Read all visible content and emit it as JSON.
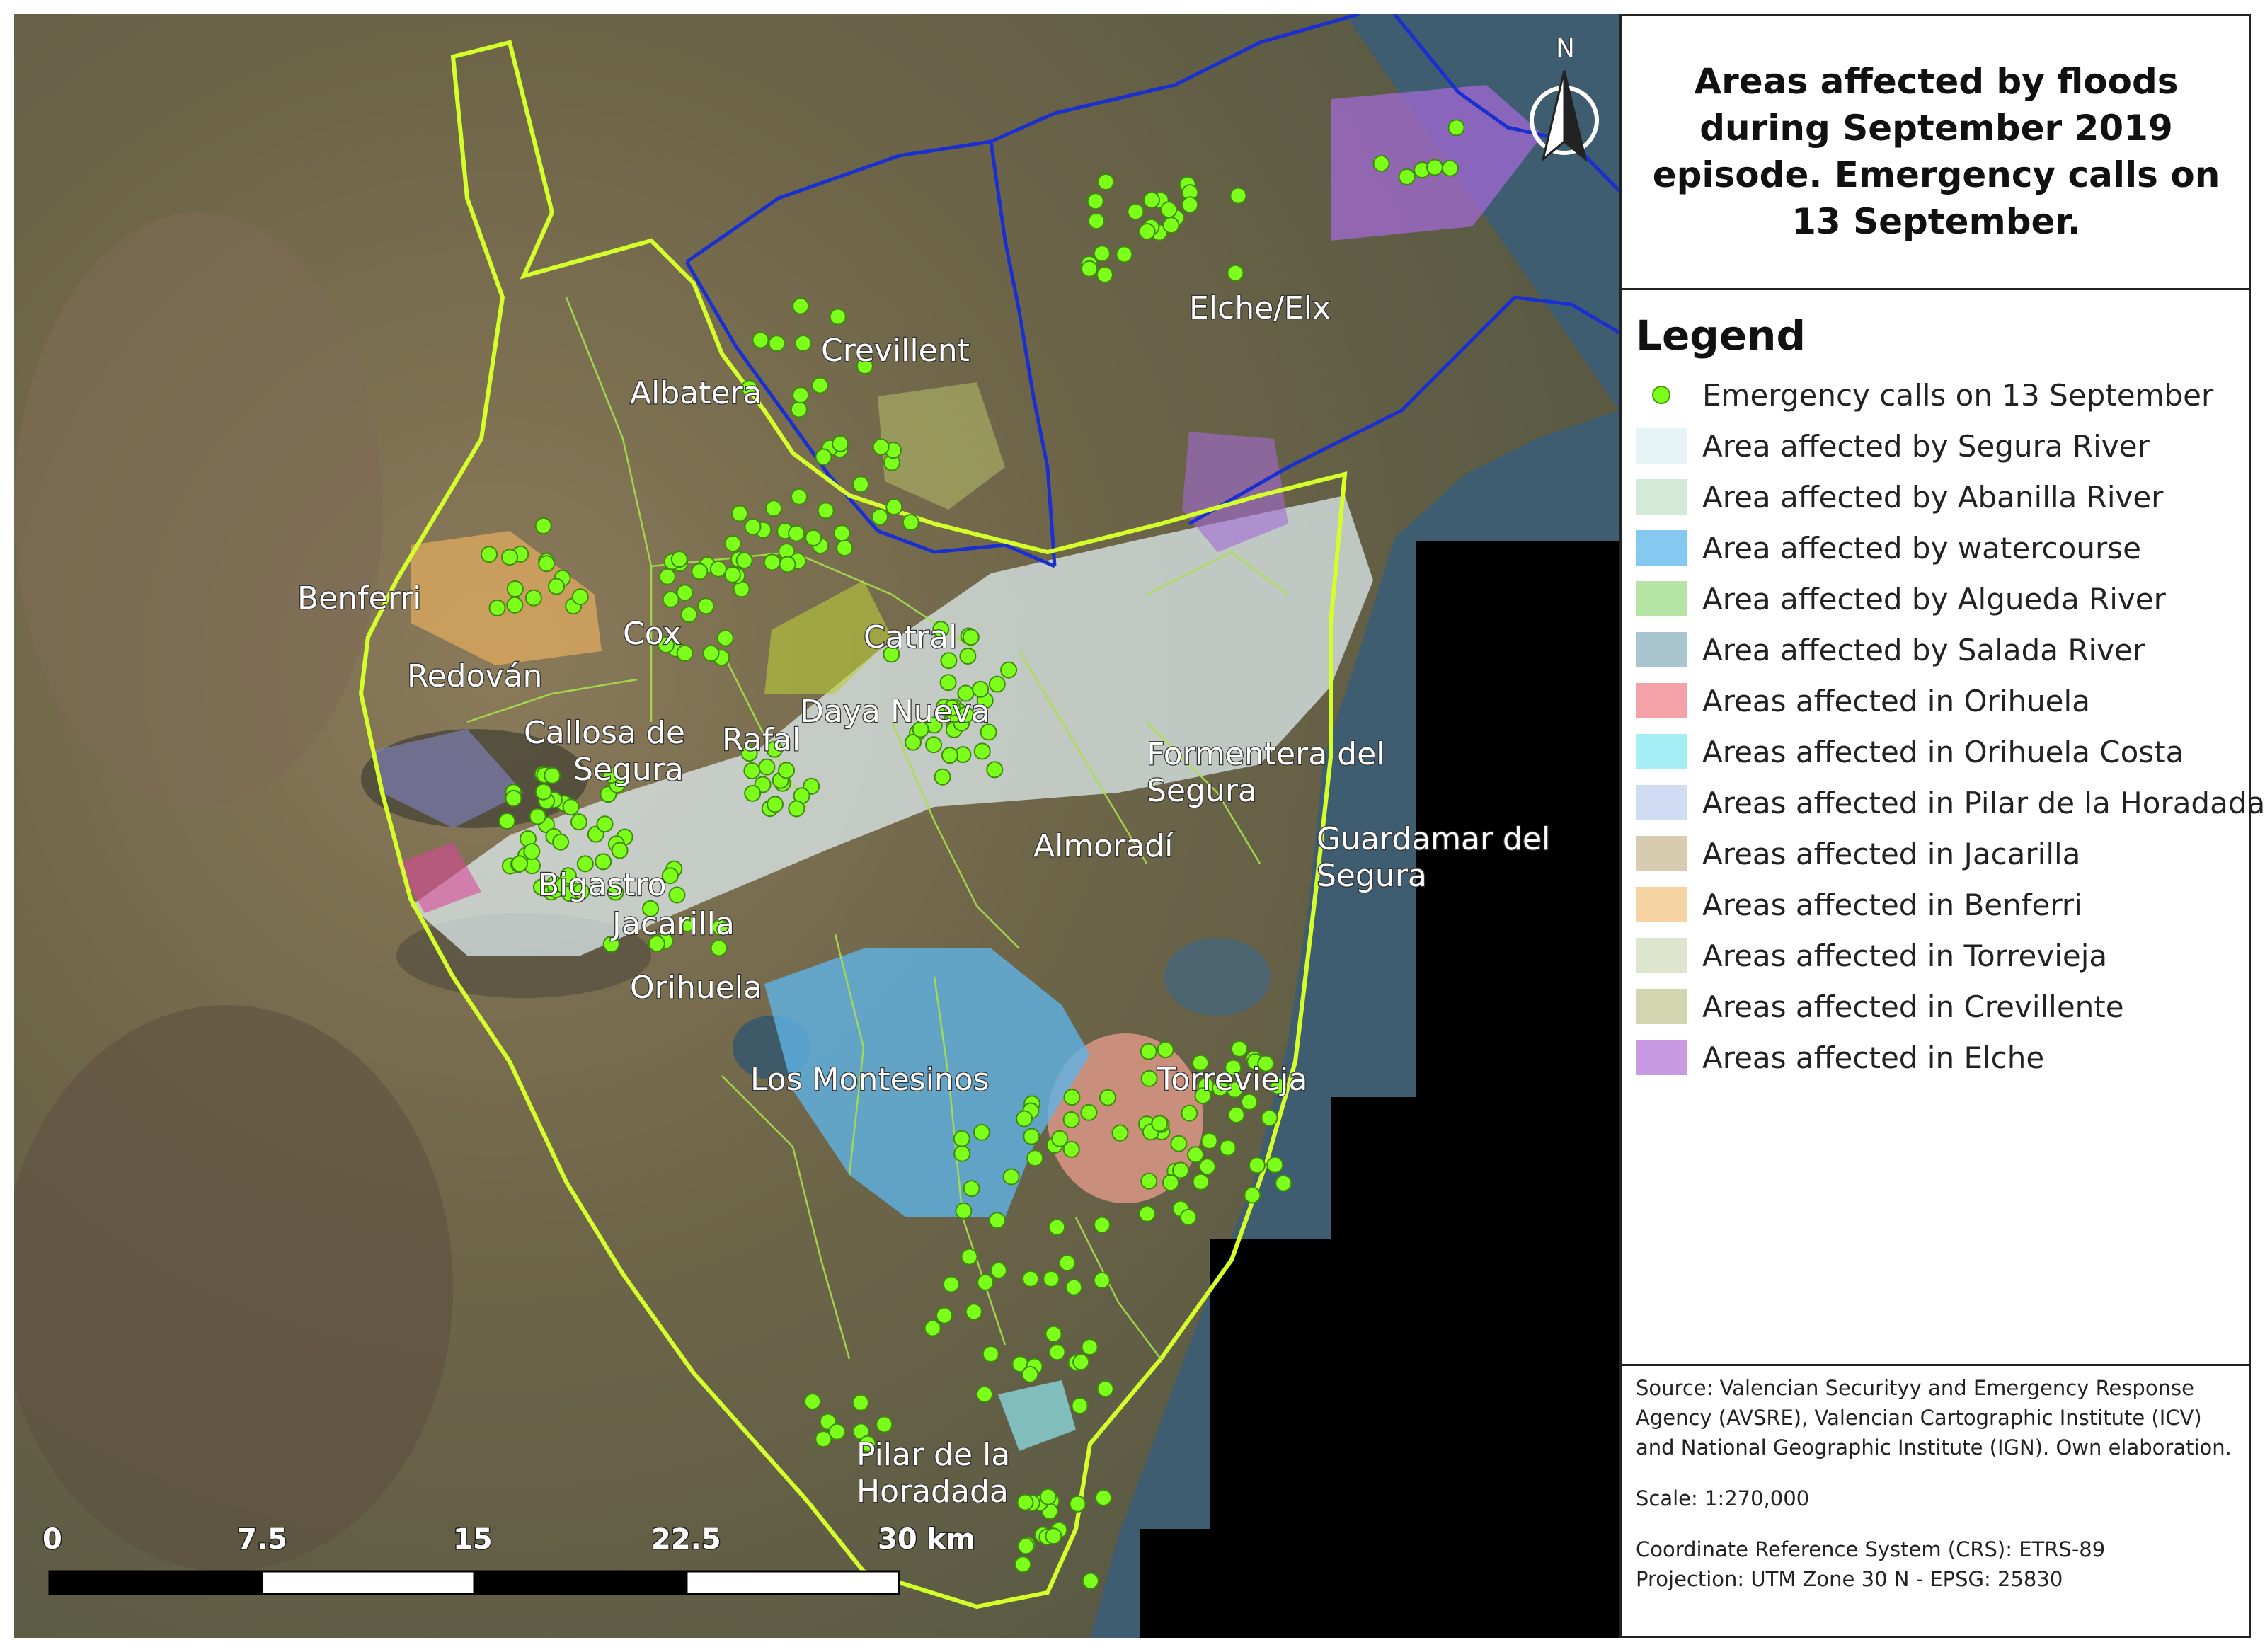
{
  "title": "Areas affected by floods during September 2019 episode. Emergency calls on 13 September.",
  "north_label": "N",
  "legend": {
    "title": "Legend",
    "items": [
      {
        "label": "Emergency calls on 13 September",
        "kind": "dot",
        "color": "#7cff1a"
      },
      {
        "label": "Area affected by Segura River",
        "kind": "fill",
        "color": "#e6f4f8"
      },
      {
        "label": "Area affected by Abanilla River",
        "kind": "fill",
        "color": "#d3ead8"
      },
      {
        "label": "Area affected by watercourse",
        "kind": "fill",
        "color": "#86c9f0"
      },
      {
        "label": "Area affected by Algueda River",
        "kind": "fill",
        "color": "#b6e4a4"
      },
      {
        "label": "Area affected by Salada River",
        "kind": "fill",
        "color": "#a9c5cf"
      },
      {
        "label": "Areas affected in Orihuela",
        "kind": "fill",
        "color": "#f4a1a7"
      },
      {
        "label": "Areas affected in Orihuela Costa",
        "kind": "fill",
        "color": "#a6eef5"
      },
      {
        "label": "Areas affected in Pilar de la Horadada",
        "kind": "fill",
        "color": "#cfdcf3"
      },
      {
        "label": "Areas affected in Jacarilla",
        "kind": "fill",
        "color": "#d8ccb0"
      },
      {
        "label": "Areas affected in Benferri",
        "kind": "fill",
        "color": "#f6d3a3"
      },
      {
        "label": "Areas affected in Torrevieja",
        "kind": "fill",
        "color": "#dde6cc"
      },
      {
        "label": "Areas affected in Crevillente",
        "kind": "fill",
        "color": "#d2d6b0"
      },
      {
        "label": "Areas affected in Elche",
        "kind": "fill",
        "color": "#c89ae4"
      }
    ]
  },
  "source": {
    "text": "Source: Valencian Securityy and Emergency Response Agency (AVSRE), Valencian Cartographic Institute (ICV) and National Geographic Institute (IGN). Own elaboration.",
    "scale": "Scale: 1:270,000",
    "crs": "Coordinate Reference System (CRS): ETRS-89",
    "projection": "Projection: UTM Zone 30 N - EPSG: 25830"
  },
  "scale_bar": {
    "ticks": [
      "0",
      "7.5",
      "15",
      "22.5",
      "30 km"
    ]
  },
  "places": [
    "Elche/Elx",
    "Crevillent",
    "Albatera",
    "Benferri",
    "Cox",
    "Catral",
    "Redován",
    "Callosa de Segura",
    "Rafal",
    "Daya Nueva",
    "Formentera del Segura",
    "Almoradí",
    "Guardamar del Segura",
    "Bigastro",
    "Jacarilla",
    "Orihuela",
    "Los Montesinos",
    "Torrevieja",
    "Pilar de la Horadada"
  ],
  "colors": {
    "land": "#6e6a4c",
    "sea": "#3f5d70",
    "no_data": "#000000",
    "study_area_boundary": "#d4ff2a",
    "municipal_boundary": "#1a2fd0",
    "emergency_call": "#7cff1a"
  }
}
